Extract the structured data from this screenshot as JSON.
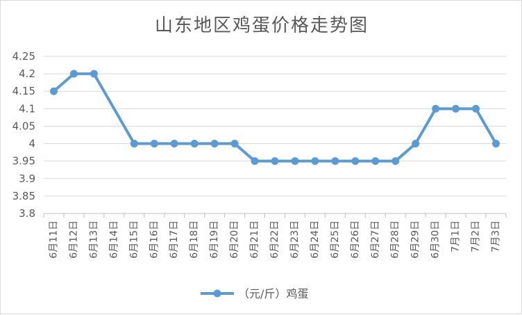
{
  "chart_data": {
    "type": "line",
    "title": "山东地区鸡蛋价格走势图",
    "categories": [
      "6月11日",
      "6月12日",
      "6月13日",
      "6月14日",
      "6月15日",
      "6月16日",
      "6月17日",
      "6月18日",
      "6月19日",
      "6月20日",
      "6月21日",
      "6月22日",
      "6月23日",
      "6月24日",
      "6月25日",
      "6月26日",
      "6月27日",
      "6月28日",
      "6月29日",
      "6月30日",
      "7月1日",
      "7月2日",
      "7月3日"
    ],
    "series": [
      {
        "name": "（元/斤）鸡蛋",
        "color": "#5b9bd5",
        "values": [
          4.15,
          4.2,
          4.2,
          null,
          4.0,
          4.0,
          4.0,
          4.0,
          4.0,
          4.0,
          3.95,
          3.95,
          3.95,
          3.95,
          3.95,
          3.95,
          3.95,
          3.95,
          4.0,
          4.1,
          4.1,
          4.1,
          4.0
        ]
      }
    ],
    "ylim": [
      3.8,
      4.25
    ],
    "yticks": [
      "3.8",
      "3.85",
      "3.9",
      "3.95",
      "4",
      "4.05",
      "4.1",
      "4.15",
      "4.2",
      "4.25"
    ],
    "grid": true,
    "legend": "bottom"
  }
}
